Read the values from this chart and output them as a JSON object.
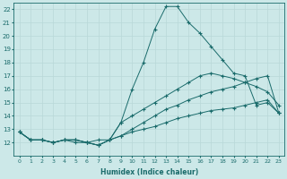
{
  "xlabel": "Humidex (Indice chaleur)",
  "xlim": [
    -0.5,
    23.5
  ],
  "ylim": [
    11,
    22.5
  ],
  "bg_color": "#cce8e8",
  "grid_color": "#b8d8d8",
  "line_color": "#1a6b6b",
  "xtick_fontsize": 4.5,
  "ytick_fontsize": 5.0,
  "xlabel_fontsize": 5.5,
  "series": [
    [
      12.8,
      12.2,
      12.2,
      12.0,
      12.2,
      12.0,
      12.0,
      12.2,
      12.2,
      12.5,
      13.0,
      13.5,
      14.0,
      14.5,
      14.8,
      15.2,
      15.5,
      15.8,
      16.0,
      16.2,
      16.5,
      16.8,
      17.0,
      14.2
    ],
    [
      12.8,
      12.2,
      12.2,
      12.0,
      12.2,
      12.2,
      12.0,
      11.8,
      12.2,
      13.5,
      16.0,
      18.0,
      20.5,
      22.2,
      22.2,
      21.0,
      20.2,
      19.2,
      18.2,
      17.2,
      17.0,
      14.8,
      15.0,
      14.2
    ],
    [
      12.8,
      12.2,
      12.2,
      12.0,
      12.2,
      12.2,
      12.0,
      11.8,
      12.2,
      13.5,
      14.0,
      14.5,
      15.0,
      15.5,
      16.0,
      16.5,
      17.0,
      17.2,
      17.0,
      16.8,
      16.5,
      16.2,
      15.8,
      14.8
    ],
    [
      12.8,
      12.2,
      12.2,
      12.0,
      12.2,
      12.2,
      12.0,
      11.8,
      12.2,
      12.5,
      12.8,
      13.0,
      13.2,
      13.5,
      13.8,
      14.0,
      14.2,
      14.4,
      14.5,
      14.6,
      14.8,
      15.0,
      15.2,
      14.2
    ]
  ]
}
